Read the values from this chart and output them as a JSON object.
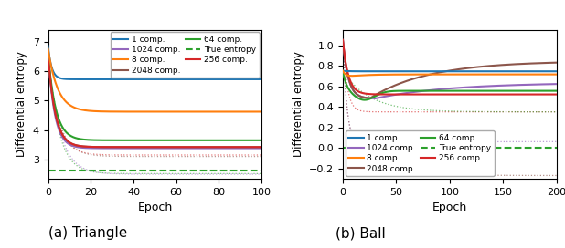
{
  "colors": {
    "1": "#1f77b4",
    "8": "#ff7f0e",
    "64": "#2ca02c",
    "256": "#d62728",
    "1024": "#9467bd",
    "2048": "#8c564b",
    "true": "#2ca02c"
  },
  "triangle": {
    "true_entropy": 2.62,
    "xlim": [
      0,
      100
    ],
    "ylim": [
      2.35,
      7.4
    ],
    "xticks": [
      0,
      20,
      40,
      60,
      80,
      100
    ],
    "yticks": [
      3,
      4,
      5,
      6,
      7
    ]
  },
  "ball": {
    "true_entropy": 0.0,
    "xlim": [
      0,
      200
    ],
    "ylim": [
      -0.3,
      1.15
    ],
    "xticks": [
      0,
      50,
      100,
      150,
      200
    ],
    "yticks": [
      -0.2,
      0.0,
      0.2,
      0.4,
      0.6,
      0.8,
      1.0
    ]
  },
  "subplot_titles": [
    "(a) Triangle",
    "(b) Ball"
  ],
  "ylabel": "Differential entropy",
  "xlabel": "Epoch",
  "legend_col1": [
    "1 comp.",
    "8 comp.",
    "64 comp.",
    "256 comp."
  ],
  "legend_col2": [
    "1024 comp.",
    "2048 comp.",
    "True entropy"
  ]
}
